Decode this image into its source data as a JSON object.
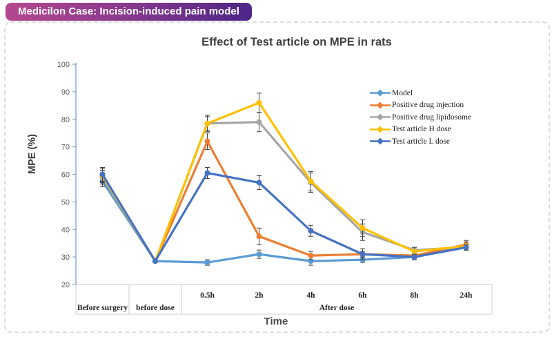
{
  "badge": {
    "label": "Medicilon Case: Incision-induced pain model",
    "gradient_left": "#b5478f",
    "gradient_right": "#4c2687"
  },
  "chart_data": {
    "type": "line",
    "title": "Effect of Test article on MPE in rats",
    "xlabel": "Time",
    "ylabel": "MPE (%)",
    "ylim": [
      20,
      100
    ],
    "ytick_step": 10,
    "grid": false,
    "legend_position": "inside-top-right",
    "axis_color": "#7faedc",
    "table_border_color": "#d6d6d6",
    "error_bar_color": "#3f3f3f",
    "categories": [
      "Before surgery",
      "before dose",
      "0.5h",
      "2h",
      "4h",
      "6h",
      "8h",
      "24h"
    ],
    "category_groups": [
      {
        "label": "Before surgery",
        "span": 1
      },
      {
        "label": "before dose",
        "span": 1
      },
      {
        "label": "After dose",
        "span": 6
      }
    ],
    "after_dose_sub_labels": [
      "0.5h",
      "2h",
      "4h",
      "6h",
      "8h",
      "24h"
    ],
    "series": [
      {
        "name": "Model",
        "color": "#5b9bd5",
        "values": [
          57.5,
          28.5,
          28.0,
          31.0,
          28.5,
          29.0,
          30.0,
          33.5
        ],
        "errors": [
          2.0,
          0.5,
          1.0,
          1.5,
          1.5,
          1.0,
          1.0,
          1.0
        ]
      },
      {
        "name": "Positive drug injection",
        "color": "#ed7d31",
        "values": [
          59.5,
          28.5,
          72.0,
          37.5,
          30.5,
          31.0,
          30.5,
          34.5
        ],
        "errors": [
          2.5,
          0.5,
          3.0,
          3.0,
          1.5,
          1.0,
          1.0,
          1.5
        ]
      },
      {
        "name": "Positive drug lipidosome",
        "color": "#a5a5a5",
        "values": [
          59.0,
          28.5,
          78.5,
          79.0,
          57.0,
          39.0,
          32.5,
          33.5
        ],
        "errors": [
          2.5,
          0.5,
          3.0,
          3.5,
          3.5,
          3.0,
          1.0,
          1.0
        ]
      },
      {
        "name": "Test article H dose",
        "color": "#ffc000",
        "values": [
          59.5,
          28.5,
          78.5,
          86.0,
          57.5,
          40.5,
          32.0,
          34.0
        ],
        "errors": [
          2.0,
          0.5,
          2.5,
          3.5,
          3.5,
          3.0,
          1.5,
          1.5
        ]
      },
      {
        "name": "Test article L dose",
        "color": "#4472c4",
        "values": [
          60.0,
          28.5,
          60.5,
          57.0,
          39.5,
          31.0,
          30.0,
          33.5
        ],
        "errors": [
          2.5,
          0.5,
          2.0,
          2.5,
          2.0,
          2.0,
          1.0,
          1.0
        ]
      }
    ]
  }
}
